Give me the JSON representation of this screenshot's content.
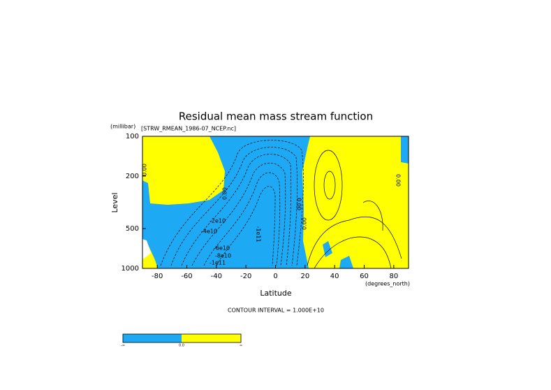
{
  "chart_data": {
    "type": "contour",
    "title": "Residual mean mass stream function",
    "subtitle": "[STRW_RMEAN_1986-07_NCEP.nc]",
    "x_label": "Latitude",
    "x_units": "(degrees_north)",
    "y_label": "Level",
    "y_units": "(millibar)",
    "xlim": [
      -90,
      90
    ],
    "xticks": [
      -80,
      -60,
      -40,
      -20,
      0,
      20,
      40,
      60,
      80
    ],
    "ylim": [
      1000,
      100
    ],
    "yticks": [
      100,
      200,
      500,
      1000
    ],
    "y_log": true,
    "colors": [
      "#1ea9f5",
      "#ffff00"
    ],
    "contour_labels": [
      "0.00",
      "0.00",
      "0.00",
      "-2e10",
      "-4e10",
      "-6e10",
      "-8e10",
      "-1e11",
      "-1e11",
      "0.00",
      "0.00"
    ],
    "note": "CONTOUR INTERVAL = 1.000E+10",
    "colorbar_labels": [
      "-∞",
      "0.0",
      "∞"
    ]
  }
}
